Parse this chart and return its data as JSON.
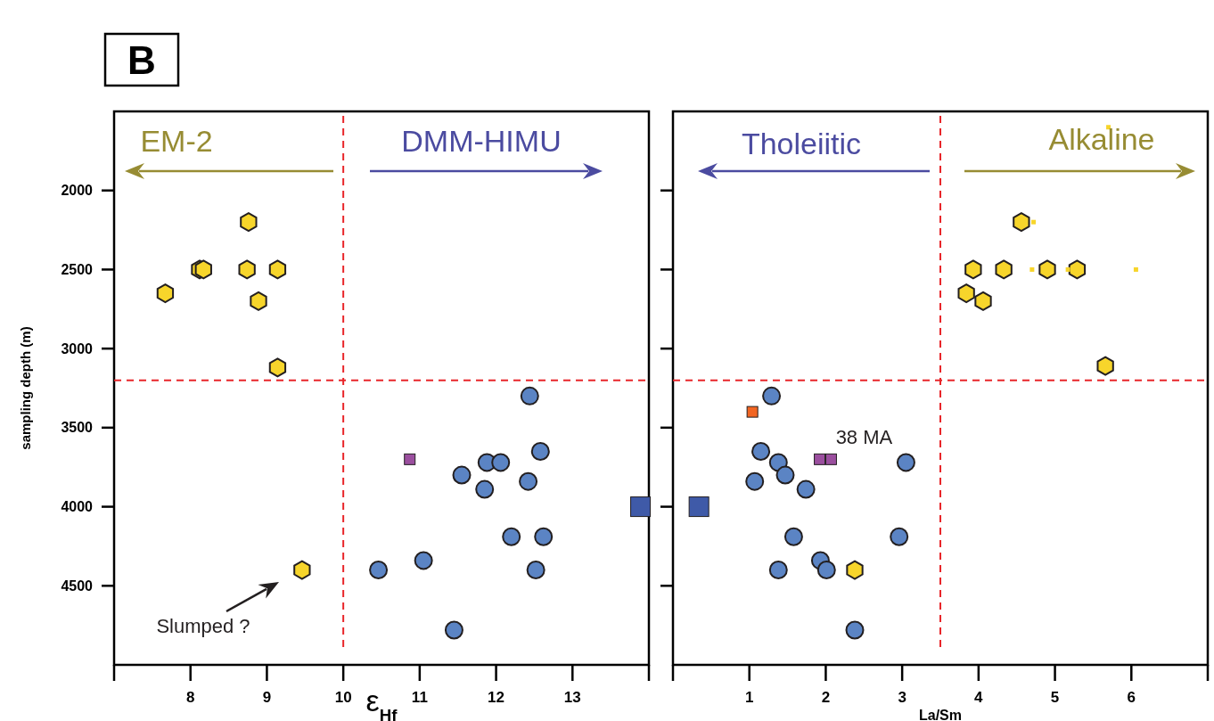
{
  "chart_data": [
    {
      "type": "scatter",
      "title": "B",
      "xlabel": "ε$_{Hf}$",
      "ylabel": "sampling depth (m)",
      "xlim": [
        7,
        14
      ],
      "xticks": [
        8,
        9,
        10,
        11,
        12,
        13
      ],
      "ylim": [
        5000,
        1500
      ],
      "yticks": [
        2000,
        2500,
        3000,
        3500,
        4000,
        4500
      ],
      "grid": false,
      "ref_lines": [
        {
          "axis": "x",
          "value": 10,
          "color": "#e8262a",
          "line_style": "dashed"
        },
        {
          "axis": "y",
          "value": 3200,
          "color": "#e8262a",
          "line_style": "dashed"
        }
      ],
      "annotations": [
        "EM-2",
        "DMM-HIMU",
        "Slumped ?"
      ],
      "series": [
        {
          "color": "#f7d52b",
          "x": [
            8.76,
            8.12,
            8.17,
            8.74,
            9.14,
            7.67,
            8.89,
            9.14,
            9.46
          ],
          "values": [
            2200,
            2500,
            2500,
            2500,
            2500,
            2650,
            2700,
            3120,
            4400
          ]
        },
        {
          "color": "#5b84c4",
          "marker": "circle",
          "x": [
            12.44,
            12.58,
            11.88,
            12.06,
            11.55,
            12.42,
            11.85,
            12.2,
            12.62,
            10.46,
            11.05,
            12.52,
            11.45
          ],
          "values": [
            3300,
            3650,
            3720,
            3720,
            3800,
            3840,
            3890,
            4190,
            4190,
            4400,
            4340,
            4400,
            4780
          ]
        },
        {
          "color": "#9b4f9f",
          "marker": "square",
          "x": [
            10.87
          ],
          "values": [
            3700
          ]
        },
        {
          "color": "#3f5aa8",
          "marker": "square",
          "x": [
            13.89
          ],
          "values": [
            4000
          ]
        }
      ]
    },
    {
      "type": "scatter",
      "xlabel": "La/Sm",
      "xlim": [
        0,
        7
      ],
      "xticks": [
        1,
        2,
        3,
        4,
        5,
        6
      ],
      "ylim": [
        5000,
        1500
      ],
      "yticks": [
        2000,
        2500,
        3000,
        3500,
        4000,
        4500
      ],
      "tick_labels": "x",
      "grid": false,
      "ref_lines": [
        {
          "axis": "x",
          "value": 3.5,
          "color": "#e8262a",
          "line_style": "dashed"
        },
        {
          "axis": "y",
          "value": 3200,
          "color": "#e8262a",
          "line_style": "dashed"
        }
      ],
      "annotations": [
        "Tholeiitic",
        "Alkaline",
        {
          "text": "38 MA",
          "x": 2.0,
          "y": 3700
        }
      ],
      "series": [
        {
          "color": "#f7d52b",
          "x": [
            4.56,
            3.93,
            4.33,
            4.9,
            5.29,
            3.84,
            4.06,
            5.66,
            2.38
          ],
          "values": [
            2200,
            2500,
            2500,
            2500,
            2500,
            2650,
            2700,
            3110,
            4400
          ]
        },
        {
          "color": "#5b84c4",
          "marker": "circle",
          "x": [
            1.29,
            1.15,
            1.38,
            1.47,
            1.07,
            1.74,
            3.05,
            1.58,
            2.96,
            1.93,
            2.01,
            1.38,
            2.38
          ],
          "values": [
            3300,
            3650,
            3720,
            3800,
            3840,
            3890,
            3720,
            4190,
            4190,
            4340,
            4400,
            4400,
            4780
          ]
        },
        {
          "color": "#9b4f9f",
          "marker": "square",
          "x": [
            1.92,
            2.07
          ],
          "values": [
            3700,
            3700
          ]
        },
        {
          "color": "#f26522",
          "marker": "square",
          "x": [
            1.04
          ],
          "values": [
            3400
          ]
        },
        {
          "color": "#3f5aa8",
          "marker": "square",
          "x": [
            0.34
          ],
          "values": [
            4000
          ]
        },
        {
          "color": "#f7d52b",
          "marker": "square",
          "x": [
            4.72,
            4.7,
            5.17,
            6.06,
            5.7
          ],
          "values": [
            2200,
            2500,
            2500,
            2500,
            1600
          ]
        }
      ]
    }
  ]
}
